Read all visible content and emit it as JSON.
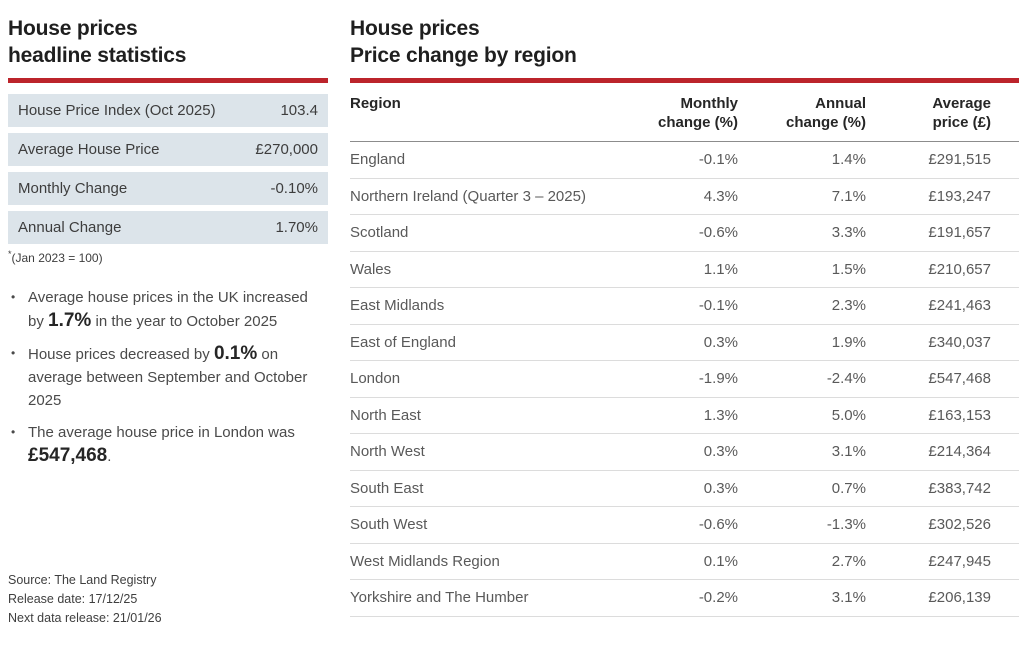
{
  "colors": {
    "accent_red": "#bc242b",
    "stat_row_bg": "#dce4ea",
    "row_separator": "#dcdcdc",
    "header_separator": "#8c8c8c"
  },
  "left_panel": {
    "title_line1": "House prices",
    "title_line2": "headline statistics",
    "stats": [
      {
        "label": "House Price Index (Oct 2025)",
        "value": "103.4"
      },
      {
        "label": "Average House Price",
        "value": "£270,000"
      },
      {
        "label": "Monthly Change",
        "value": "-0.10%"
      },
      {
        "label": "Annual Change",
        "value": "1.70%"
      }
    ],
    "footnote_marker": "*",
    "footnote_text": "(Jan 2023 = 100)",
    "bullets": [
      {
        "pre": "Average house prices in the UK increased by ",
        "bold": "1.7%",
        "post": " in the year to October 2025"
      },
      {
        "pre": "House prices decreased by ",
        "bold": "0.1%",
        "post": " on average between September and October 2025"
      },
      {
        "pre": "The average house price in London was ",
        "bold": "£547,468",
        "post": "."
      }
    ],
    "source_lines": [
      "Source: The Land Registry",
      "Release date: 17/12/25",
      "Next data release: 21/01/26"
    ]
  },
  "right_panel": {
    "title_line1": "House prices",
    "title_line2": "Price change by region",
    "table": {
      "headers": {
        "region": "Region",
        "monthly_line1": "Monthly",
        "monthly_line2": "change (%)",
        "annual_line1": "Annual",
        "annual_line2": "change (%)",
        "price_line1": "Average",
        "price_line2": "price (£)"
      },
      "rows": [
        {
          "region": "England",
          "monthly": "-0.1%",
          "annual": "1.4%",
          "price": "£291,515"
        },
        {
          "region": "Northern Ireland (Quarter 3 – 2025)",
          "monthly": "4.3%",
          "annual": "7.1%",
          "price": "£193,247"
        },
        {
          "region": "Scotland",
          "monthly": "-0.6%",
          "annual": "3.3%",
          "price": "£191,657"
        },
        {
          "region": "Wales",
          "monthly": "1.1%",
          "annual": "1.5%",
          "price": "£210,657"
        },
        {
          "region": "East Midlands",
          "monthly": "-0.1%",
          "annual": "2.3%",
          "price": "£241,463"
        },
        {
          "region": "East of England",
          "monthly": "0.3%",
          "annual": "1.9%",
          "price": "£340,037"
        },
        {
          "region": "London",
          "monthly": "-1.9%",
          "annual": "-2.4%",
          "price": "£547,468"
        },
        {
          "region": "North East",
          "monthly": "1.3%",
          "annual": "5.0%",
          "price": "£163,153"
        },
        {
          "region": "North West",
          "monthly": "0.3%",
          "annual": "3.1%",
          "price": "£214,364"
        },
        {
          "region": "South East",
          "monthly": "0.3%",
          "annual": "0.7%",
          "price": "£383,742"
        },
        {
          "region": "South West",
          "monthly": "-0.6%",
          "annual": "-1.3%",
          "price": "£302,526"
        },
        {
          "region": "West Midlands Region",
          "monthly": "0.1%",
          "annual": "2.7%",
          "price": "£247,945"
        },
        {
          "region": "Yorkshire and The Humber",
          "monthly": "-0.2%",
          "annual": "3.1%",
          "price": "£206,139"
        }
      ]
    }
  }
}
